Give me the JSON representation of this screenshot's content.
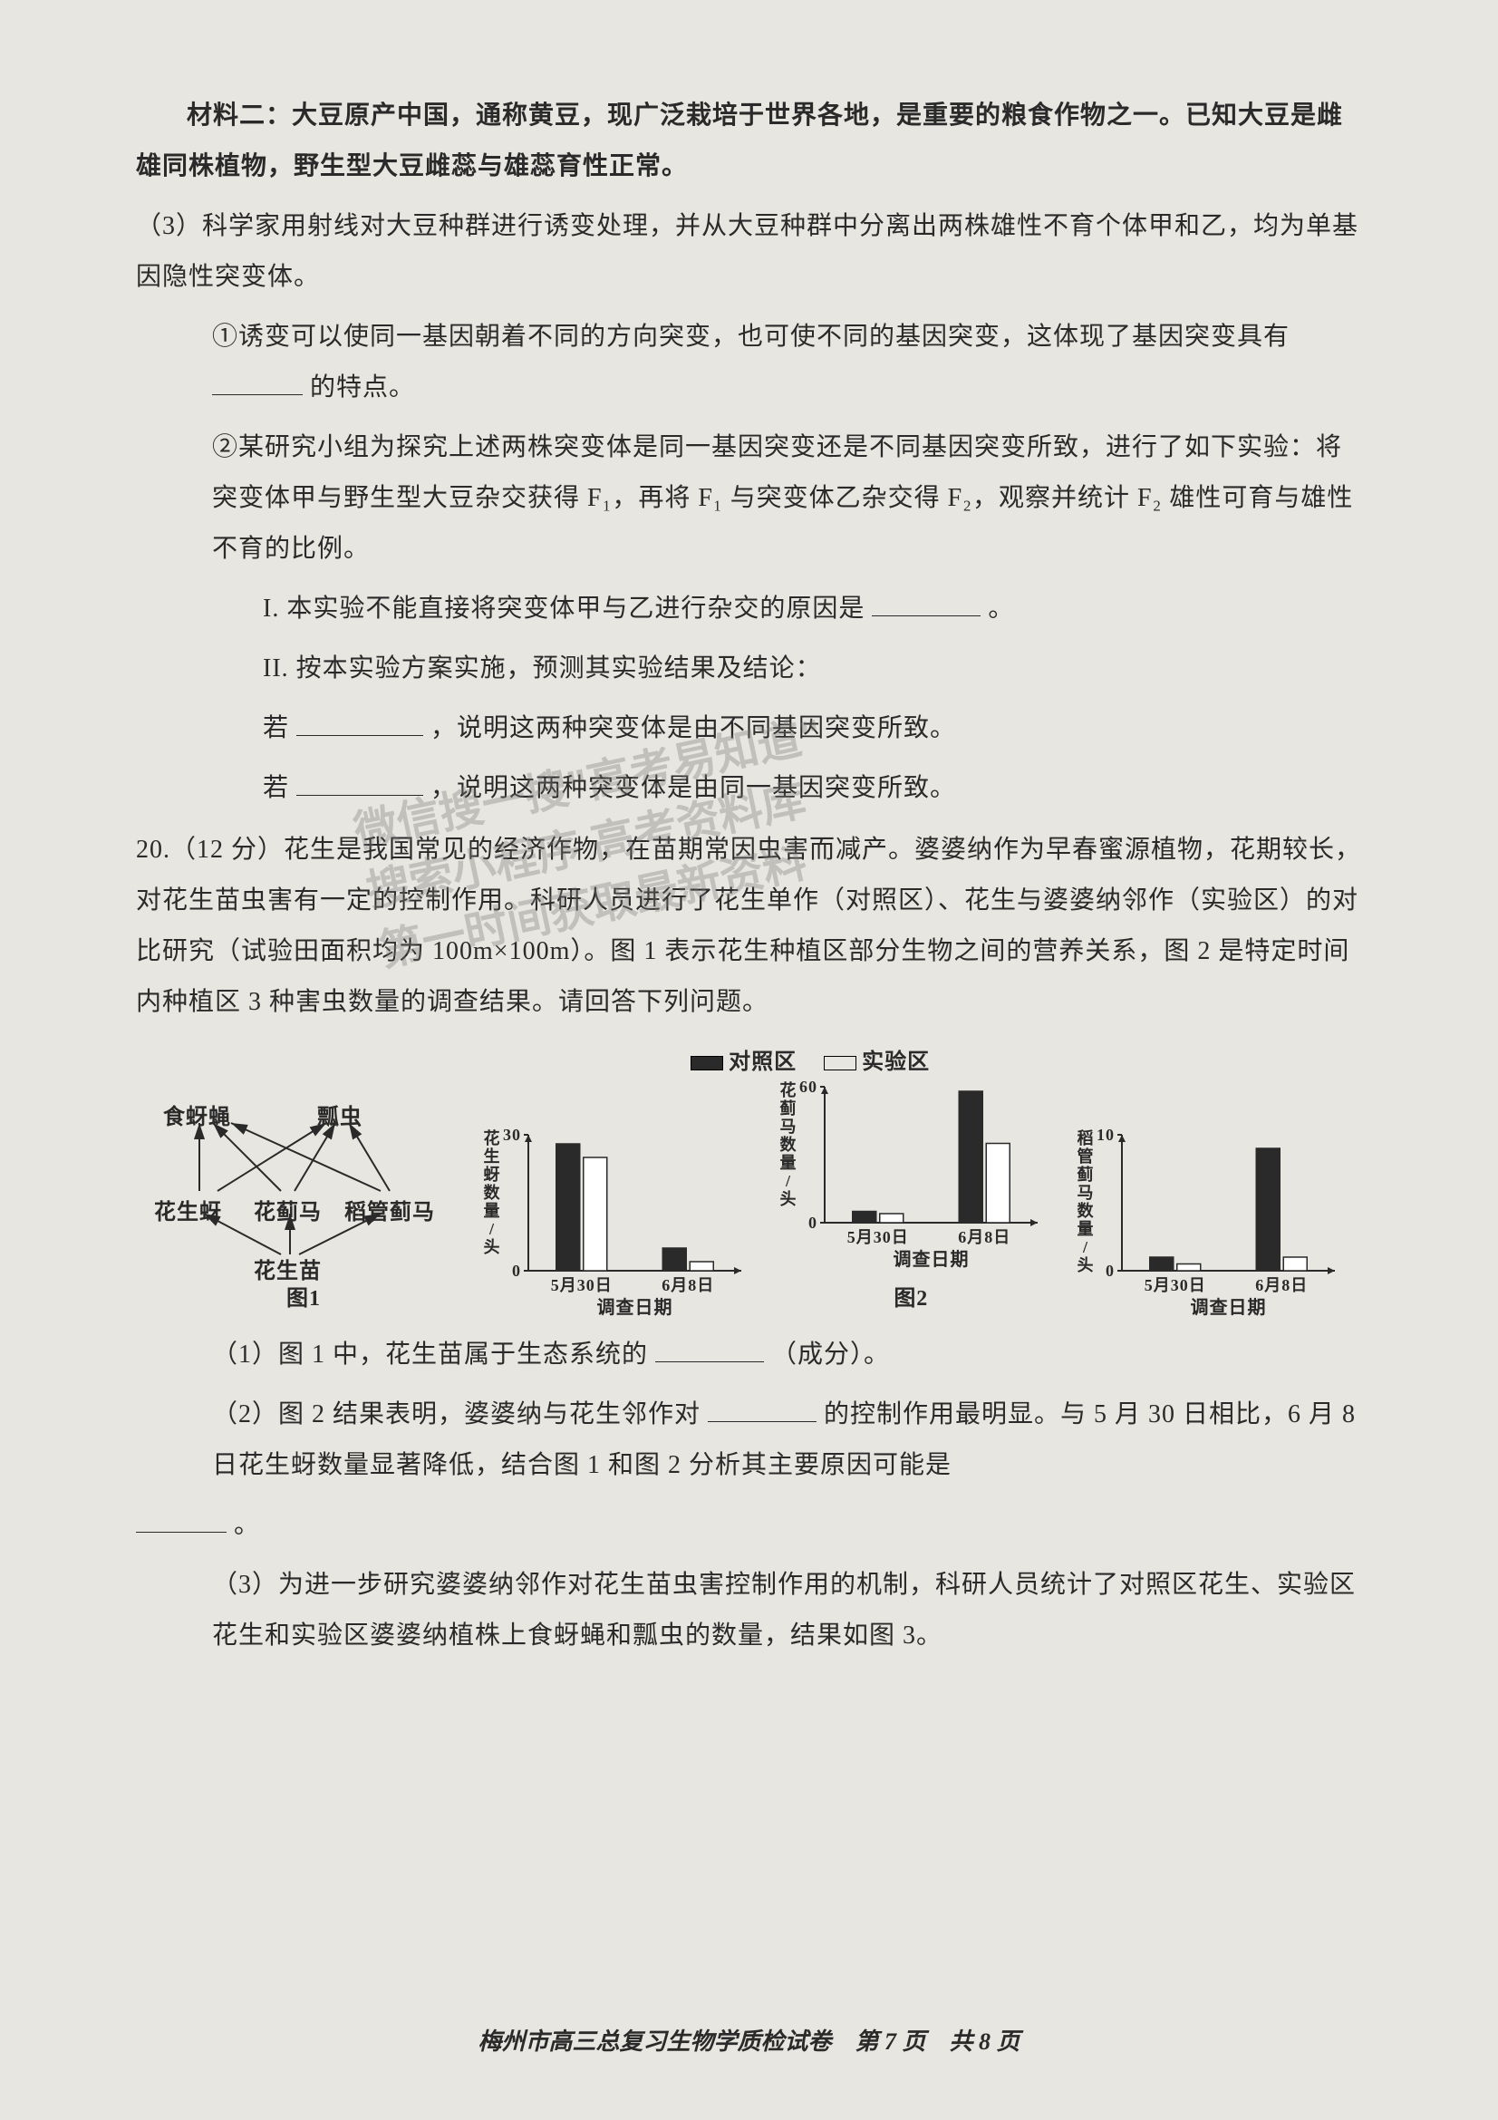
{
  "material2_intro": "材料二：大豆原产中国，通称黄豆，现广泛栽培于世界各地，是重要的粮食作物之一。已知大豆是雌雄同株植物，野生型大豆雌蕊与雄蕊育性正常。",
  "q3_intro": "（3）科学家用射线对大豆种群进行诱变处理，并从大豆种群中分离出两株雄性不育个体甲和乙，均为单基因隐性突变体。",
  "q3_1a": "①诱变可以使同一基因朝着不同的方向突变，也可使不同的基因突变，这体现了基因突变具有",
  "q3_1b": "的特点。",
  "q3_2_intro": "②某研究小组为探究上述两株突变体是同一基因突变还是不同基因突变所致，进行了如下实验：将突变体甲与野生型大豆杂交获得 F₁，再将 F₁ 与突变体乙杂交得 F₂，观察并统计 F₂ 雄性可育与雄性不育的比例。",
  "q3_2_I_a": "I. 本实验不能直接将突变体甲与乙进行杂交的原因是",
  "q3_2_I_b": "。",
  "q3_2_II_head": "II. 按本实验方案实施，预测其实验结果及结论：",
  "q3_2_II_r1a": "若",
  "q3_2_II_r1b": "，说明这两种突变体是由不同基因突变所致。",
  "q3_2_II_r2a": "若",
  "q3_2_II_r2b": "，说明这两种突变体是由同一基因突变所致。",
  "q20_intro": "20.（12 分）花生是我国常见的经济作物，在苗期常因虫害而减产。婆婆纳作为早春蜜源植物，花期较长，对花生苗虫害有一定的控制作用。科研人员进行了花生单作（对照区）、花生与婆婆纳邻作（实验区）的对比研究（试验田面积均为 100m×100m）。图 1 表示花生种植区部分生物之间的营养关系，图 2 是特定时间内种植区 3 种害虫数量的调查结果。请回答下列问题。",
  "legend": {
    "control": "对照区",
    "exp": "实验区"
  },
  "network": {
    "nodes": {
      "n_shiya": "食蚜蝇",
      "n_piao": "瓢虫",
      "n_hsya": "花生蚜",
      "n_hjm": "花蓟马",
      "n_dgjm": "稻管蓟马",
      "n_hsmiao": "花生苗"
    },
    "label": "图1"
  },
  "chart_common": {
    "xlabel": "调查日期",
    "xcats": [
      "5月30日",
      "6月8日"
    ],
    "bar_colors": {
      "control": "#2a2a2a",
      "exp": "#ffffff"
    },
    "stroke": "#2a2a2a",
    "axis_color": "#2a2a2a",
    "font_size_pt": 18
  },
  "chart1": {
    "ylabel": "花生蚜数量/头",
    "ylim": [
      0,
      30
    ],
    "yticks": [
      0,
      30
    ],
    "values": {
      "control": [
        28,
        5
      ],
      "exp": [
        25,
        2
      ]
    }
  },
  "chart2": {
    "ylabel": "花蓟马数量/头",
    "ylim": [
      0,
      60
    ],
    "yticks": [
      0,
      60
    ],
    "values": {
      "control": [
        5,
        58
      ],
      "exp": [
        4,
        35
      ]
    },
    "label": "图2"
  },
  "chart3": {
    "ylabel": "稻管蓟马数量/头",
    "ylim": [
      0,
      10
    ],
    "yticks": [
      0,
      10
    ],
    "values": {
      "control": [
        1,
        9
      ],
      "exp": [
        0.5,
        1
      ]
    }
  },
  "q20_1a": "（1）图 1 中，花生苗属于生态系统的",
  "q20_1b": "（成分）。",
  "q20_2a": "（2）图 2 结果表明，婆婆纳与花生邻作对",
  "q20_2b": "的控制作用最明显。与 5 月 30 日相比，6 月 8 日花生蚜数量显著降低，结合图 1 和图 2 分析其主要原因可能是",
  "q20_2c": "。",
  "q20_3": "（3）为进一步研究婆婆纳邻作对花生苗虫害控制作用的机制，科研人员统计了对照区花生、实验区花生和实验区婆婆纳植株上食蚜蝇和瓢虫的数量，结果如图 3。",
  "footer": "梅州市高三总复习生物学质检试卷　第 7 页　共 8 页",
  "watermark": "微信搜一搜\"高考易知道\"\n搜索小程序 高考资料库\n第一时间获取最新资料"
}
